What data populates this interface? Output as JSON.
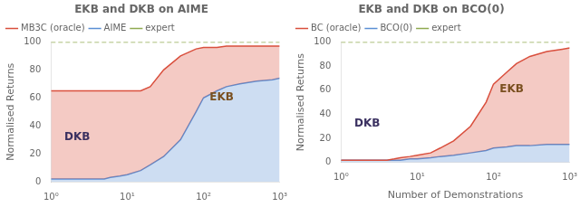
{
  "chart_data": [
    {
      "type": "line",
      "title": "EKB and DKB on AIME",
      "ylabel": "Normalised Returns",
      "x": [
        1,
        2,
        3,
        4,
        5,
        6,
        8,
        10,
        15,
        20,
        30,
        50,
        80,
        100,
        150,
        200,
        300,
        500,
        800,
        1000
      ],
      "series": [
        {
          "name": "expert",
          "color": "#8faa50",
          "line_style": "dashed",
          "type": "line",
          "values": [
            100,
            100,
            100,
            100,
            100,
            100,
            100,
            100,
            100,
            100,
            100,
            100,
            100,
            100,
            100,
            100,
            100,
            100,
            100,
            100
          ]
        },
        {
          "name": "AIME",
          "color": "#5b8fd4",
          "line_style": "solid",
          "type": "area",
          "values": [
            2,
            2,
            2,
            2,
            2,
            3,
            4,
            5,
            8,
            12,
            18,
            30,
            50,
            60,
            65,
            68,
            70,
            72,
            73,
            74
          ]
        },
        {
          "name": "MB3C (oracle)",
          "color": "#d94f3d",
          "line_style": "solid",
          "type": "area",
          "values": [
            65,
            65,
            65,
            65,
            65,
            65,
            65,
            65,
            65,
            68,
            80,
            90,
            95,
            96,
            96,
            97,
            97,
            97,
            97,
            97
          ]
        }
      ],
      "log": "x",
      "xlim": [
        1,
        1000
      ],
      "ylim": [
        0,
        100
      ],
      "xticks": [
        {
          "value": 1,
          "label": "10⁰"
        },
        {
          "value": 10,
          "label": "10¹"
        },
        {
          "value": 100,
          "label": "10²"
        },
        {
          "value": 1000,
          "label": "10³"
        }
      ],
      "yticks": [
        0,
        20,
        40,
        60,
        80,
        100
      ],
      "grid": false,
      "legend": "upper left",
      "annotations": [
        {
          "text": "DKB",
          "x": 1.5,
          "y": 30,
          "color": "#3a3060"
        },
        {
          "text": "EKB",
          "x": 120,
          "y": 58,
          "color": "#7a5020"
        }
      ]
    },
    {
      "type": "line",
      "title": "EKB and DKB on BCO(0)",
      "xlabel": "Number of Demonstrations",
      "ylabel": "Normalised Returns",
      "x": [
        1,
        2,
        3,
        4,
        5,
        6,
        8,
        10,
        15,
        20,
        30,
        50,
        80,
        100,
        150,
        200,
        300,
        500,
        800,
        1000
      ],
      "series": [
        {
          "name": "expert",
          "color": "#8faa50",
          "line_style": "dashed",
          "type": "line",
          "values": [
            100,
            100,
            100,
            100,
            100,
            100,
            100,
            100,
            100,
            100,
            100,
            100,
            100,
            100,
            100,
            100,
            100,
            100,
            100,
            100
          ]
        },
        {
          "name": "BCO(0)",
          "color": "#5b8fd4",
          "line_style": "solid",
          "type": "area",
          "values": [
            2,
            2,
            2,
            2,
            2,
            2,
            3,
            3,
            4,
            5,
            6,
            8,
            10,
            12,
            13,
            14,
            14,
            15,
            15,
            15
          ]
        },
        {
          "name": "BC (oracle)",
          "color": "#d94f3d",
          "line_style": "solid",
          "type": "area",
          "values": [
            2,
            2,
            2,
            2,
            3,
            4,
            5,
            6,
            8,
            12,
            18,
            30,
            50,
            65,
            75,
            82,
            88,
            92,
            94,
            95
          ]
        }
      ],
      "log": "x",
      "xlim": [
        1,
        1000
      ],
      "ylim": [
        0,
        100
      ],
      "xticks": [
        {
          "value": 1,
          "label": "10⁰"
        },
        {
          "value": 10,
          "label": "10¹"
        },
        {
          "value": 100,
          "label": "10²"
        },
        {
          "value": 1000,
          "label": "10³"
        }
      ],
      "yticks": [
        0,
        20,
        40,
        60,
        80,
        100
      ],
      "grid": false,
      "legend": "upper left",
      "annotations": [
        {
          "text": "DKB",
          "x": 1.5,
          "y": 30,
          "color": "#3a3060"
        },
        {
          "text": "EKB",
          "x": 120,
          "y": 58,
          "color": "#7a5020"
        }
      ]
    }
  ]
}
